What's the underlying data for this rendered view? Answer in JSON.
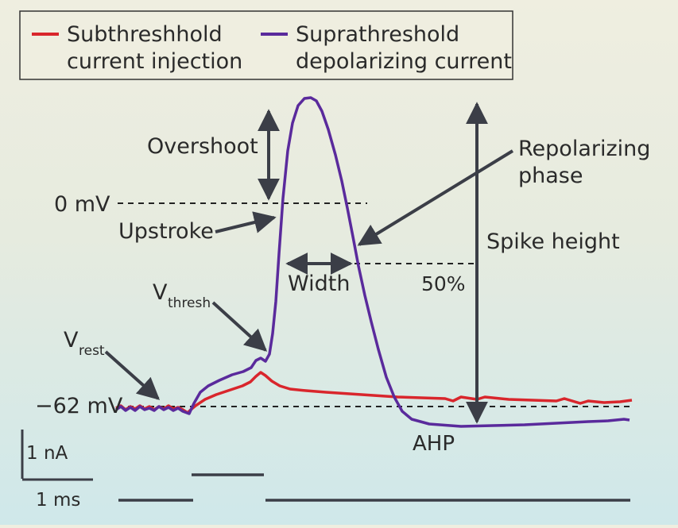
{
  "legend": {
    "items": [
      {
        "line1": "Subthreshhold",
        "line2": "current injection",
        "color": "#d9262c"
      },
      {
        "line1": "Suprathreshold",
        "line2": "depolarizing current",
        "color": "#5a2a9c"
      }
    ]
  },
  "labels": {
    "zero_mv": "0 mV",
    "rest_mv": "−62 mV",
    "overshoot": "Overshoot",
    "upstroke": "Upstroke",
    "repolarizing_line1": "Repolarizing",
    "repolarizing_line2": "phase",
    "spike_height": "Spike height",
    "width": "Width",
    "fifty_percent": "50%",
    "v_thresh_main": "V",
    "v_thresh_sub": "thresh",
    "v_rest_main": "V",
    "v_rest_sub": "rest",
    "ahp": "AHP"
  },
  "scale_bar": {
    "current": "1 nA",
    "time": "1 ms"
  },
  "colors": {
    "subthreshold": "#d9262c",
    "suprathreshold": "#5a2a9c",
    "annotation": "#3b3e47",
    "panel_top": "#efeee0",
    "panel_bottom": "#d4eaea"
  }
}
